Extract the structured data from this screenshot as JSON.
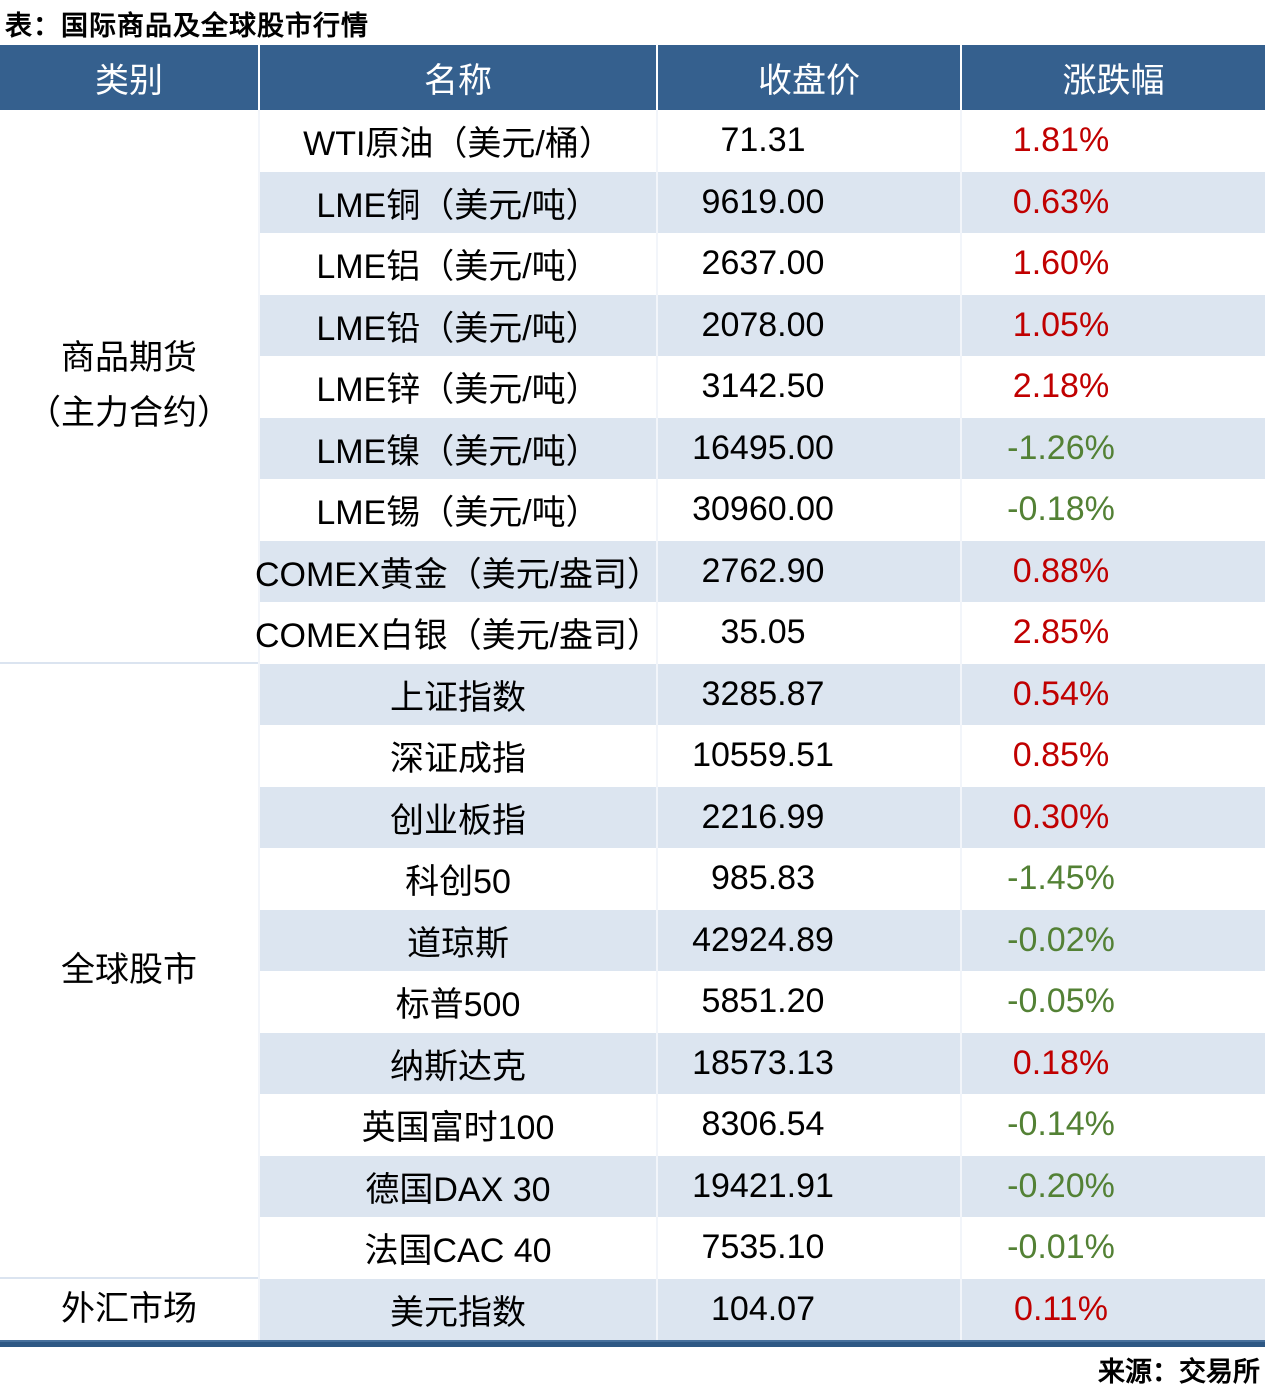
{
  "page_title": "表：国际商品及全球股市行情",
  "source_note": "来源：交易所",
  "colors": {
    "header_bg": "#35608E",
    "stripe_row_bg": "#DCE5F0",
    "positive_change": "#C00000",
    "negative_change": "#538135",
    "bottom_bar": "#2E5884"
  },
  "chart_data": {
    "type": "table",
    "title": "表：国际商品及全球股市行情",
    "columns": [
      "类别",
      "名称",
      "收盘价",
      "涨跌幅"
    ],
    "categories": [
      {
        "line1": "商品期货",
        "line2": "（主力合约）",
        "row_count": 9
      },
      {
        "line1": "全球股市",
        "line2": "",
        "row_count": 10
      },
      {
        "line1": "外汇市场",
        "line2": "",
        "row_count": 1
      }
    ],
    "rows": [
      {
        "name": "WTI原油（美元/桶）",
        "close": "71.31",
        "change": "1.81%"
      },
      {
        "name": "LME铜（美元/吨）",
        "close": "9619.00",
        "change": "0.63%"
      },
      {
        "name": "LME铝（美元/吨）",
        "close": "2637.00",
        "change": "1.60%"
      },
      {
        "name": "LME铅（美元/吨）",
        "close": "2078.00",
        "change": "1.05%"
      },
      {
        "name": "LME锌（美元/吨）",
        "close": "3142.50",
        "change": "2.18%"
      },
      {
        "name": "LME镍（美元/吨）",
        "close": "16495.00",
        "change": "-1.26%"
      },
      {
        "name": "LME锡（美元/吨）",
        "close": "30960.00",
        "change": "-0.18%"
      },
      {
        "name": "COMEX黄金（美元/盎司）",
        "close": "2762.90",
        "change": "0.88%"
      },
      {
        "name": "COMEX白银（美元/盎司）",
        "close": "35.05",
        "change": "2.85%"
      },
      {
        "name": "上证指数",
        "close": "3285.87",
        "change": "0.54%"
      },
      {
        "name": "深证成指",
        "close": "10559.51",
        "change": "0.85%"
      },
      {
        "name": "创业板指",
        "close": "2216.99",
        "change": "0.30%"
      },
      {
        "name": "科创50",
        "close": "985.83",
        "change": "-1.45%"
      },
      {
        "name": "道琼斯",
        "close": "42924.89",
        "change": "-0.02%"
      },
      {
        "name": "标普500",
        "close": "5851.20",
        "change": "-0.05%"
      },
      {
        "name": "纳斯达克",
        "close": "18573.13",
        "change": "0.18%"
      },
      {
        "name": "英国富时100",
        "close": "8306.54",
        "change": "-0.14%"
      },
      {
        "name": "德国DAX 30",
        "close": "19421.91",
        "change": "-0.20%"
      },
      {
        "name": "法国CAC 40",
        "close": "7535.10",
        "change": "-0.01%"
      },
      {
        "name": "美元指数",
        "close": "104.07",
        "change": "0.11%"
      }
    ],
    "source": "来源：交易所"
  }
}
